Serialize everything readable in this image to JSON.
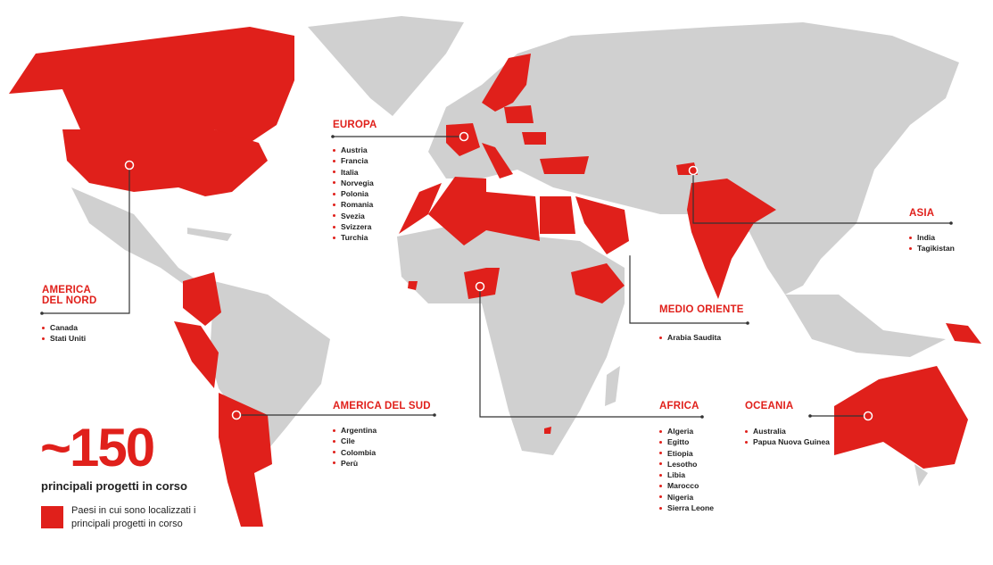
{
  "colors": {
    "accent": "#e0201b",
    "land": "#d0d0d0",
    "text": "#222222"
  },
  "summary": {
    "count": "~150",
    "subtitle": "principali progetti in corso",
    "legend": "Paesi in cui sono localizzati i principali progetti in corso"
  },
  "regions": {
    "europa": {
      "title": "EUROPA",
      "countries": [
        "Austria",
        "Francia",
        "Italia",
        "Norvegia",
        "Polonia",
        "Romania",
        "Svezia",
        "Svizzera",
        "Turchia"
      ]
    },
    "nord_america": {
      "title_line1": "AMERICA",
      "title_line2": "DEL NORD",
      "countries": [
        "Canada",
        "Stati Uniti"
      ]
    },
    "sud_america": {
      "title": "AMERICA DEL SUD",
      "countries": [
        "Argentina",
        "Cile",
        "Colombia",
        "Perù"
      ]
    },
    "africa": {
      "title": "AFRICA",
      "countries": [
        "Algeria",
        "Egitto",
        "Etiopia",
        "Lesotho",
        "Libia",
        "Marocco",
        "Nigeria",
        "Sierra Leone"
      ]
    },
    "medio_oriente": {
      "title": "MEDIO ORIENTE",
      "countries": [
        "Arabia Saudita"
      ]
    },
    "asia": {
      "title": "ASIA",
      "countries": [
        "India",
        "Tagikistan"
      ]
    },
    "oceania": {
      "title": "OCEANIA",
      "countries": [
        "Australia",
        "Papua Nuova Guinea"
      ]
    }
  }
}
